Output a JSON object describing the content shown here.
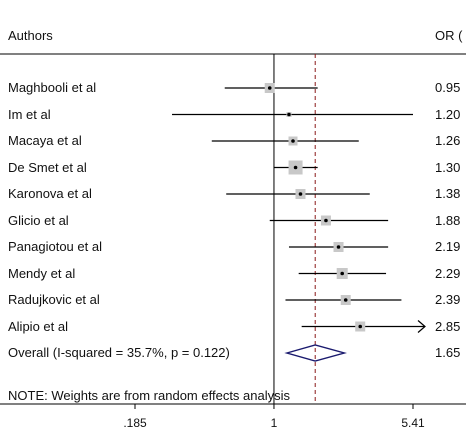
{
  "header": {
    "authors": "Authors",
    "or": "OR ("
  },
  "chart_data": {
    "type": "forest",
    "scale": "log",
    "x_ticks": [
      ".185",
      "1",
      "5.41"
    ],
    "null_value": 1,
    "studies": [
      {
        "name": "Maghbooli et al",
        "or_label": "0.95",
        "or": 0.95,
        "ci": [
          0.55,
          1.7
        ]
      },
      {
        "name": "Im et al",
        "or_label": "1.20",
        "or": 1.2,
        "ci": [
          0.29,
          5.41
        ]
      },
      {
        "name": "Macaya et al",
        "or_label": "1.26",
        "or": 1.26,
        "ci": [
          0.47,
          2.8
        ]
      },
      {
        "name": "De Smet et al",
        "or_label": "1.30",
        "or": 1.3,
        "ci": [
          1.0,
          1.7
        ]
      },
      {
        "name": "Karonova et al",
        "or_label": "1.38",
        "or": 1.38,
        "ci": [
          0.56,
          3.2
        ]
      },
      {
        "name": "Glicio et al",
        "or_label": "1.88",
        "or": 1.88,
        "ci": [
          0.95,
          4.0
        ]
      },
      {
        "name": "Panagiotou  et al",
        "or_label": "2.19",
        "or": 2.19,
        "ci": [
          1.2,
          4.0
        ]
      },
      {
        "name": "Mendy et al",
        "or_label": "2.29",
        "or": 2.29,
        "ci": [
          1.35,
          3.9
        ]
      },
      {
        "name": "Radujkovic et al",
        "or_label": "2.39",
        "or": 2.39,
        "ci": [
          1.15,
          4.7
        ]
      },
      {
        "name": "Alipio et al",
        "or_label": "2.85",
        "or": 2.85,
        "ci": [
          1.4,
          5.41
        ],
        "ci_arrow_right": true
      }
    ],
    "overall": {
      "label": "Overall  (I-squared = 35.7%, p = 0.122)",
      "or_label": "1.65",
      "or": 1.65,
      "ci": [
        1.17,
        2.35
      ]
    },
    "note": "NOTE: Weights are from random effects analysis",
    "colors": {
      "diamond": "#1a1a6e",
      "box": "#c8c8c8",
      "line": "#000000",
      "overall_line": "#8b1a1a"
    }
  }
}
